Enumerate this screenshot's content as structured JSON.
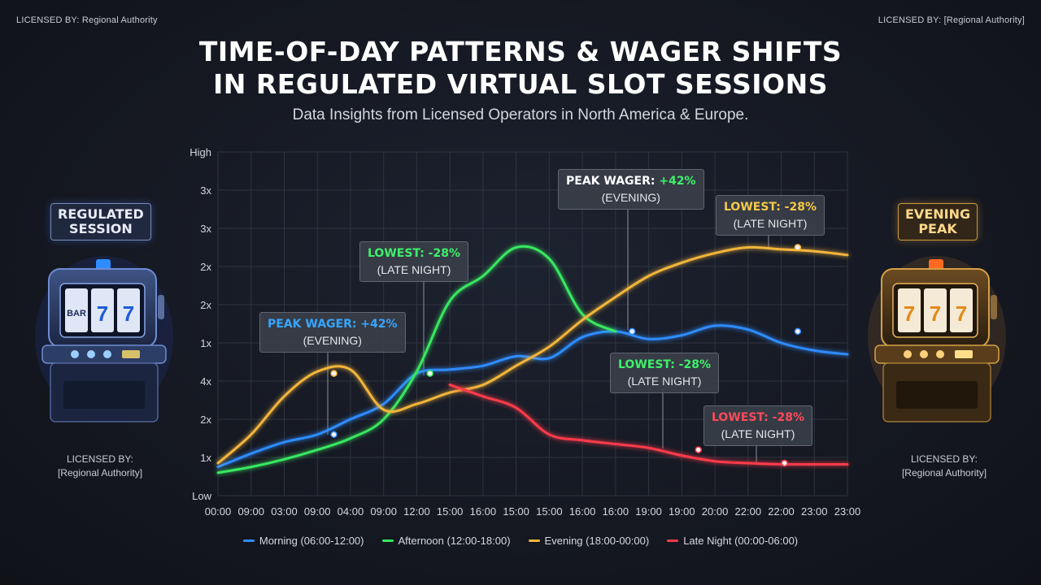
{
  "header": {
    "license_left": "LICENSED BY: Regional Authority",
    "license_right": "LICENSED BY: [Regional Authority]",
    "title_line1": "TIME-OF-DAY PATTERNS & WAGER SHIFTS",
    "title_line2": "IN REGULATED VIRTUAL SLOT SESSIONS",
    "subtitle": "Data Insights from Licensed Operators in North America & Europe."
  },
  "left_panel": {
    "badge_line1": "REGULATED",
    "badge_line2": "SESSION",
    "license_line1": "LICENSED BY:",
    "license_line2": "[Regional Authority]",
    "icon": "slot-machine-icon",
    "accent": "#3f7cff"
  },
  "right_panel": {
    "badge_line1": "EVENING",
    "badge_line2": "PEAK",
    "license_line1": "LICENSED BY:",
    "license_line2": "[Regional Authority]",
    "icon": "slot-machine-icon",
    "accent": "#f0a030"
  },
  "callouts": [
    {
      "head_label": "PEAK WAGER:",
      "head_value": "+42%",
      "sub": "(EVENING)",
      "head_color": "#36a6ff",
      "value_color": "#36a6ff"
    },
    {
      "head_label": "LOWEST:",
      "head_value": "-28%",
      "sub": "(LATE NIGHT)",
      "head_color": "#3ff06a",
      "value_color": "#3ff06a"
    },
    {
      "head_label": "PEAK WAGER:",
      "head_value": "+42%",
      "sub": "(EVENING)",
      "head_color": "#ffffff",
      "value_color": "#3ff06a"
    },
    {
      "head_label": "LOWEST:",
      "head_value": "-28%",
      "sub": "(LATE NIGHT)",
      "head_color": "#f5c84a",
      "value_color": "#f5c84a"
    },
    {
      "head_label": "LOWEST:",
      "head_value": "-28%",
      "sub": "(LATE NIGHT)",
      "head_color": "#3ff06a",
      "value_color": "#3ff06a"
    },
    {
      "head_label": "LOWEST:",
      "head_value": "-28%",
      "sub": "(LATE NIGHT)",
      "head_color": "#ff4a5a",
      "value_color": "#ff4a5a"
    }
  ],
  "chart_data": {
    "type": "line",
    "title": "TIME-OF-DAY PATTERNS & WAGER SHIFTS IN REGULATED VIRTUAL SLOT SESSIONS",
    "xlabel": "",
    "ylabel": "",
    "x_tick_labels": [
      "00:00",
      "09:00",
      "03:00",
      "09:00",
      "04:00",
      "09:00",
      "12:00",
      "15:00",
      "16:00",
      "15:00",
      "15:00",
      "16:00",
      "16:00",
      "19:00",
      "19:00",
      "20:00",
      "22:00",
      "22:00",
      "23:00",
      "23:00"
    ],
    "y_tick_labels": [
      "Low",
      "1x",
      "2x",
      "4x",
      "1x",
      "2x",
      "2x",
      "3x",
      "3x",
      "High"
    ],
    "ylim": [
      0,
      9
    ],
    "grid": true,
    "legend_position": "bottom",
    "series": [
      {
        "name": "Morning (06:00-12:00)",
        "color": "#2f8cff",
        "x": [
          0,
          1,
          2,
          3,
          4,
          5,
          6,
          7,
          8,
          9,
          10,
          11,
          12,
          13,
          14,
          15,
          16,
          17,
          18,
          19
        ],
        "values": [
          0.75,
          1.1,
          1.4,
          1.6,
          2.0,
          2.4,
          3.2,
          3.3,
          3.4,
          3.65,
          3.6,
          4.15,
          4.3,
          4.1,
          4.2,
          4.45,
          4.35,
          4.0,
          3.8,
          3.7
        ]
      },
      {
        "name": "Afternoon (12:00-18:00)",
        "color": "#39e860",
        "x": [
          0,
          1,
          2,
          3,
          4,
          5,
          6,
          7,
          8,
          9,
          10,
          11,
          12
        ],
        "values": [
          0.6,
          0.75,
          0.95,
          1.2,
          1.5,
          2.0,
          3.25,
          5.1,
          5.75,
          6.5,
          6.2,
          4.75,
          4.3
        ]
      },
      {
        "name": "Evening (18:00-00:00)",
        "color": "#f2b53a",
        "x": [
          0,
          1,
          2,
          3,
          4,
          5,
          6,
          7,
          8,
          9,
          10,
          11,
          12,
          13,
          14,
          15,
          16,
          17,
          18,
          19
        ],
        "values": [
          0.85,
          1.6,
          2.6,
          3.25,
          3.3,
          2.25,
          2.4,
          2.7,
          2.9,
          3.4,
          3.9,
          4.6,
          5.2,
          5.75,
          6.1,
          6.35,
          6.5,
          6.45,
          6.4,
          6.3
        ]
      },
      {
        "name": "Late Night (00:00-06:00)",
        "color": "#ff3b4c",
        "x": [
          7,
          8,
          9,
          10,
          11,
          12,
          13,
          14,
          15,
          16,
          17,
          18,
          19
        ],
        "values": [
          2.9,
          2.6,
          2.3,
          1.6,
          1.45,
          1.35,
          1.25,
          1.05,
          0.9,
          0.85,
          0.82,
          0.82,
          0.82
        ]
      }
    ],
    "markers": [
      {
        "series": 0,
        "x": 3.5,
        "y": 1.6
      },
      {
        "series": 2,
        "x": 3.5,
        "y": 3.2
      },
      {
        "series": 1,
        "x": 6.4,
        "y": 3.2
      },
      {
        "series": 0,
        "x": 12.5,
        "y": 4.3
      },
      {
        "series": 3,
        "x": 14.5,
        "y": 1.2
      },
      {
        "series": 2,
        "x": 17.5,
        "y": 6.5
      },
      {
        "series": 0,
        "x": 17.5,
        "y": 4.3
      },
      {
        "series": 3,
        "x": 17.1,
        "y": 0.85
      }
    ]
  }
}
